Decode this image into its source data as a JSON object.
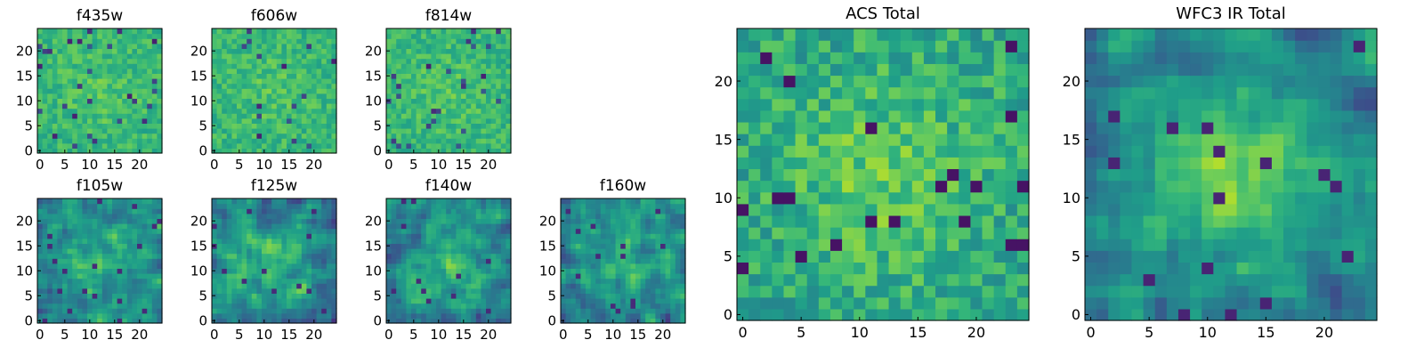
{
  "chart_data": [
    {
      "type": "heatmap",
      "title": "f435w",
      "x_ticks": [
        "0",
        "5",
        "10",
        "15",
        "20"
      ],
      "y_ticks": [
        "0",
        "5",
        "10",
        "15",
        "20"
      ],
      "xlim": [
        -0.5,
        24.5
      ],
      "ylim": [
        -0.5,
        24.5
      ],
      "grid_size": 25,
      "colormap": "viridis",
      "seed": 11,
      "mode": "noise"
    },
    {
      "type": "heatmap",
      "title": "f606w",
      "x_ticks": [
        "0",
        "5",
        "10",
        "15",
        "20"
      ],
      "y_ticks": [
        "0",
        "5",
        "10",
        "15",
        "20"
      ],
      "xlim": [
        -0.5,
        24.5
      ],
      "ylim": [
        -0.5,
        24.5
      ],
      "grid_size": 25,
      "colormap": "viridis",
      "seed": 23,
      "mode": "noise"
    },
    {
      "type": "heatmap",
      "title": "f814w",
      "x_ticks": [
        "0",
        "5",
        "10",
        "15",
        "20"
      ],
      "y_ticks": [
        "0",
        "5",
        "10",
        "15",
        "20"
      ],
      "xlim": [
        -0.5,
        24.5
      ],
      "ylim": [
        -0.5,
        24.5
      ],
      "grid_size": 25,
      "colormap": "viridis",
      "seed": 37,
      "mode": "noise"
    },
    {
      "type": "heatmap",
      "title": "f105w",
      "x_ticks": [
        "0",
        "5",
        "10",
        "15",
        "20"
      ],
      "y_ticks": [
        "0",
        "5",
        "10",
        "15",
        "20"
      ],
      "xlim": [
        -0.5,
        24.5
      ],
      "ylim": [
        -0.5,
        24.5
      ],
      "grid_size": 25,
      "colormap": "viridis",
      "seed": 41,
      "mode": "smooth"
    },
    {
      "type": "heatmap",
      "title": "f125w",
      "x_ticks": [
        "0",
        "5",
        "10",
        "15",
        "20"
      ],
      "y_ticks": [
        "0",
        "5",
        "10",
        "15",
        "20"
      ],
      "xlim": [
        -0.5,
        24.5
      ],
      "ylim": [
        -0.5,
        24.5
      ],
      "grid_size": 25,
      "colormap": "viridis",
      "seed": 53,
      "mode": "smooth"
    },
    {
      "type": "heatmap",
      "title": "f140w",
      "x_ticks": [
        "0",
        "5",
        "10",
        "15",
        "20"
      ],
      "y_ticks": [
        "0",
        "5",
        "10",
        "15",
        "20"
      ],
      "xlim": [
        -0.5,
        24.5
      ],
      "ylim": [
        -0.5,
        24.5
      ],
      "grid_size": 25,
      "colormap": "viridis",
      "seed": 67,
      "mode": "smooth"
    },
    {
      "type": "heatmap",
      "title": "f160w",
      "x_ticks": [
        "0",
        "5",
        "10",
        "15",
        "20"
      ],
      "y_ticks": [
        "0",
        "5",
        "10",
        "15",
        "20"
      ],
      "xlim": [
        -0.5,
        24.5
      ],
      "ylim": [
        -0.5,
        24.5
      ],
      "grid_size": 25,
      "colormap": "viridis",
      "seed": 79,
      "mode": "smooth"
    },
    {
      "type": "heatmap",
      "title": "ACS Total",
      "x_ticks": [
        "0",
        "5",
        "10",
        "15",
        "20"
      ],
      "y_ticks": [
        "0",
        "5",
        "10",
        "15",
        "20"
      ],
      "xlim": [
        -0.5,
        24.5
      ],
      "ylim": [
        -0.5,
        24.5
      ],
      "grid_size": 25,
      "colormap": "viridis",
      "seed": 97,
      "mode": "acs"
    },
    {
      "type": "heatmap",
      "title": "WFC3 IR Total",
      "x_ticks": [
        "0",
        "5",
        "10",
        "15",
        "20"
      ],
      "y_ticks": [
        "0",
        "5",
        "10",
        "15",
        "20"
      ],
      "xlim": [
        -0.5,
        24.5
      ],
      "ylim": [
        -0.5,
        24.5
      ],
      "grid_size": 25,
      "colormap": "viridis",
      "seed": 113,
      "mode": "ir"
    }
  ]
}
